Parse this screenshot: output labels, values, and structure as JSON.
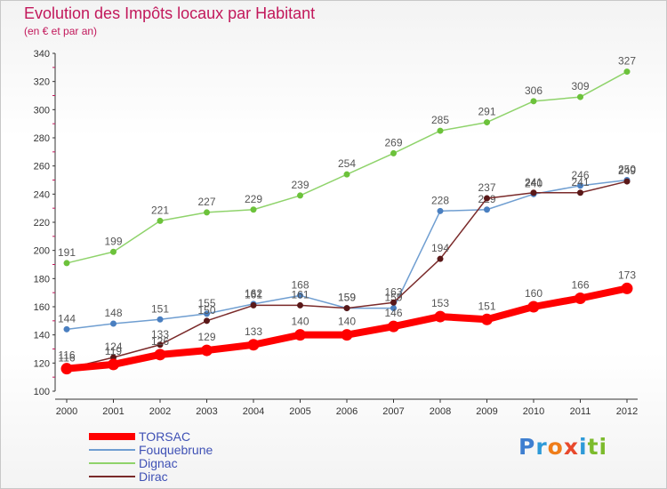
{
  "title": "Evolution des Impôts locaux par Habitant",
  "subtitle": "(en € et par an)",
  "logo": {
    "text": "Proxiti",
    "letter_colors": [
      "#3f7fd0",
      "#2e9ad8",
      "#ef7d1a",
      "#e8492c",
      "#2e9ad8",
      "#7cbb2c",
      "#7cbb2c"
    ]
  },
  "chart_data": {
    "type": "line",
    "title": "Evolution des Impôts locaux par Habitant",
    "subtitle": "(en € et par an)",
    "x": [
      "2000",
      "2001",
      "2002",
      "2003",
      "2004",
      "2005",
      "2006",
      "2007",
      "2008",
      "2009",
      "2010",
      "2011",
      "2012"
    ],
    "yticks": [
      "100",
      "120",
      "140",
      "160",
      "180",
      "200",
      "220",
      "240",
      "260",
      "280",
      "300",
      "320",
      "340"
    ],
    "ylim": [
      100,
      340
    ],
    "grid": false,
    "legend_position": "bottom-left",
    "series": [
      {
        "name": "Dignac",
        "color": "#8fd36b",
        "marker_color": "#6cc23b",
        "weight": "thin",
        "values": [
          191,
          199,
          221,
          227,
          229,
          239,
          254,
          269,
          285,
          291,
          306,
          309,
          327
        ],
        "labels": [
          "191",
          "199",
          "221",
          "227",
          "229",
          "239",
          "254",
          "269",
          "285",
          "291",
          "306",
          "309",
          "327"
        ]
      },
      {
        "name": "Fouquebrune",
        "color": "#6f9ed1",
        "marker_color": "#4a7fc0",
        "weight": "thin",
        "values": [
          144,
          148,
          151,
          155,
          162,
          168,
          159,
          159,
          228,
          229,
          240,
          246,
          250
        ],
        "labels": [
          "144",
          "148",
          "151",
          "155",
          "162",
          "168",
          "159",
          "159",
          "228",
          "229",
          "240",
          "246",
          "250"
        ]
      },
      {
        "name": "Dirac",
        "color": "#7a2a2a",
        "marker_color": "#5a1818",
        "weight": "thin",
        "values": [
          116,
          124,
          133,
          150,
          161,
          161,
          159,
          163,
          194,
          237,
          241,
          241,
          249
        ],
        "labels": [
          "116",
          "124",
          "133",
          "150",
          "161",
          "161",
          "159",
          "163",
          "194",
          "237",
          "241",
          "241",
          "249"
        ]
      },
      {
        "name": "TORSAC",
        "color": "#ff0000",
        "marker_color": "#ff0000",
        "weight": "thick",
        "values": [
          116,
          119,
          126,
          129,
          133,
          140,
          140,
          146,
          153,
          151,
          160,
          166,
          173
        ],
        "labels": [
          "116",
          "119",
          "126",
          "129",
          "133",
          "140",
          "140",
          "146",
          "153",
          "151",
          "160",
          "166",
          "173"
        ]
      }
    ],
    "legend": [
      {
        "name": "TORSAC",
        "color": "#ff0000",
        "weight": "thick"
      },
      {
        "name": "Fouquebrune",
        "color": "#6f9ed1",
        "weight": "thin"
      },
      {
        "name": "Dignac",
        "color": "#8fd36b",
        "weight": "thin"
      },
      {
        "name": "Dirac",
        "color": "#7a2a2a",
        "weight": "thin"
      }
    ]
  }
}
